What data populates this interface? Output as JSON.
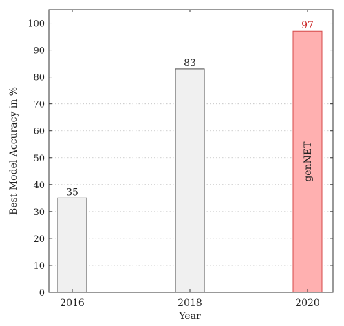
{
  "chart_data": {
    "type": "bar",
    "xlabel": "Year",
    "ylabel": "Best Model Accuracy in %",
    "ylim": [
      0,
      105
    ],
    "yticks": [
      0,
      10,
      20,
      30,
      40,
      50,
      60,
      70,
      80,
      90,
      100
    ],
    "grid": "horizontal dotted",
    "categories": [
      "2016",
      "2018",
      "2020"
    ],
    "values": [
      35,
      83,
      97
    ],
    "value_labels": [
      "35",
      "83",
      "97"
    ],
    "bar_colors": [
      "#f0f0f0",
      "#f0f0f0",
      "#ffb0b0"
    ],
    "bar_edge_colors": [
      "#4a4a4a",
      "#4a4a4a",
      "#d44848"
    ],
    "value_label_colors": [
      "#222222",
      "#222222",
      "#cc2b2b"
    ],
    "annotations": [
      {
        "category": "2020",
        "text": "genNET",
        "orientation": "vertical",
        "color": "#222222"
      }
    ]
  }
}
